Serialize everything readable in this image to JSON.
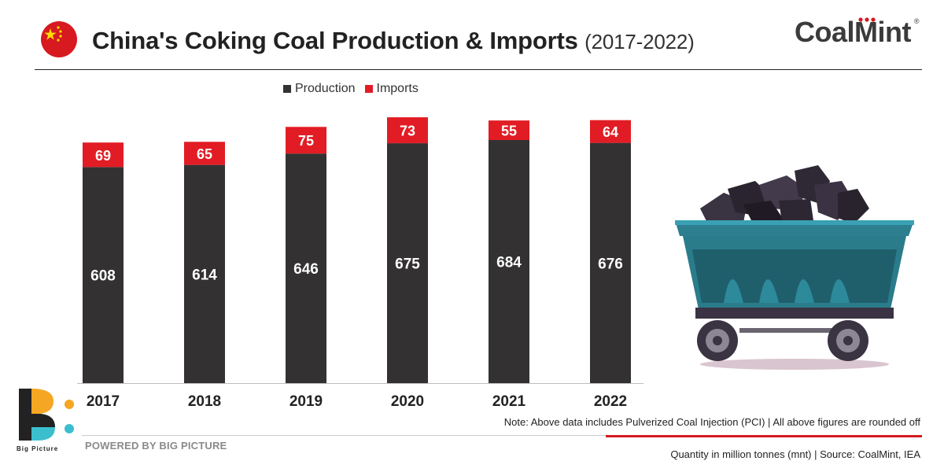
{
  "header": {
    "title": "China's Coking Coal Production & Imports",
    "title_years": "(2017-2022)",
    "brand_name": "CoalMint",
    "brand_mark": "®",
    "flag_icon": "china-flag-icon"
  },
  "chart_data": {
    "type": "bar",
    "stacked": true,
    "categories": [
      "2017",
      "2018",
      "2019",
      "2020",
      "2021",
      "2022"
    ],
    "series": [
      {
        "name": "Production",
        "values": [
          608,
          614,
          646,
          675,
          684,
          676
        ],
        "color": "#333132",
        "label_color": "#ffffff"
      },
      {
        "name": "Imports",
        "values": [
          69,
          65,
          75,
          73,
          55,
          64
        ],
        "color": "#e21c24",
        "label_color": "#ffffff"
      }
    ],
    "ylim": [
      0,
      777
    ],
    "grid": false,
    "legend": "top-center"
  },
  "footer": {
    "note": "Note: Above data includes Pulverized Coal Injection (PCI) | All above figures are rounded off",
    "source": "Quantity in million tonnes (mnt) | Source: CoalMint, IEA",
    "powered_by": "POWERED BY BIG PICTURE",
    "logo_name": "Big Picture"
  },
  "colors": {
    "accent_red": "#d71920",
    "bp_orange": "#f5a623",
    "bp_cyan": "#3bbfcf"
  },
  "illustration": "coal-cart-icon"
}
